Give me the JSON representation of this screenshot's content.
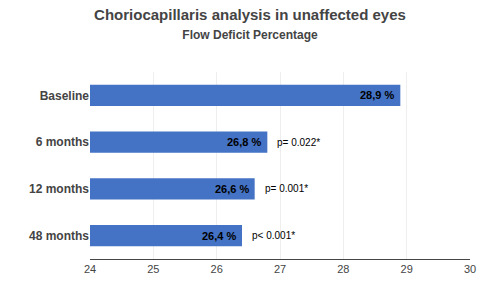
{
  "chart_data": {
    "type": "bar",
    "orientation": "horizontal",
    "title": "Choriocapillaris analysis in unaffected eyes",
    "subtitle": "Flow Deficit Percentage",
    "categories": [
      "Baseline",
      "6 months",
      "12 months",
      "48 months"
    ],
    "values": [
      28.9,
      26.8,
      26.6,
      26.4
    ],
    "value_labels": [
      "28,9 %",
      "26,8 %",
      "26,6 %",
      "26,4 %"
    ],
    "data_labels": true,
    "annotations": [
      null,
      "p= 0.022*",
      "p= 0.001*",
      "p< 0.001*"
    ],
    "color": "#4472C4",
    "xlim": [
      24,
      30
    ],
    "xticks": [
      24,
      25,
      26,
      27,
      28,
      29,
      30
    ],
    "grid": true
  }
}
